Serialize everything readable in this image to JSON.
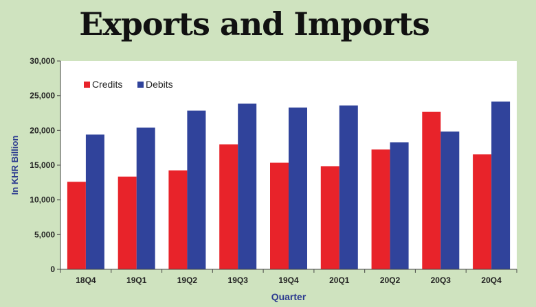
{
  "colors": {
    "background": "#cfe3bf",
    "credits": "#e8232a",
    "debits": "#30439b",
    "axis_label": "#2b3a8f"
  },
  "chart_data": {
    "type": "bar",
    "title": "Exports and Imports",
    "xlabel": "Quarter",
    "ylabel": "In KHR Billion",
    "categories": [
      "18Q4",
      "19Q1",
      "19Q2",
      "19Q3",
      "19Q4",
      "20Q1",
      "20Q2",
      "20Q3",
      "20Q4"
    ],
    "series": [
      {
        "name": "Credits",
        "color": "#e8232a",
        "values": [
          12600,
          13350,
          14250,
          18000,
          15350,
          14850,
          17250,
          22700,
          16550
        ]
      },
      {
        "name": "Debits",
        "color": "#30439b",
        "values": [
          19400,
          20400,
          22850,
          23850,
          23300,
          23600,
          18300,
          19850,
          24150
        ]
      }
    ],
    "ylim": [
      0,
      30000
    ],
    "yticks": [
      "0",
      "5,000",
      "10,000",
      "15,000",
      "20,000",
      "25,000",
      "30,000"
    ],
    "ytick_values": [
      0,
      5000,
      10000,
      15000,
      20000,
      25000,
      30000
    ],
    "grid": false,
    "legend_position": "top-left"
  }
}
